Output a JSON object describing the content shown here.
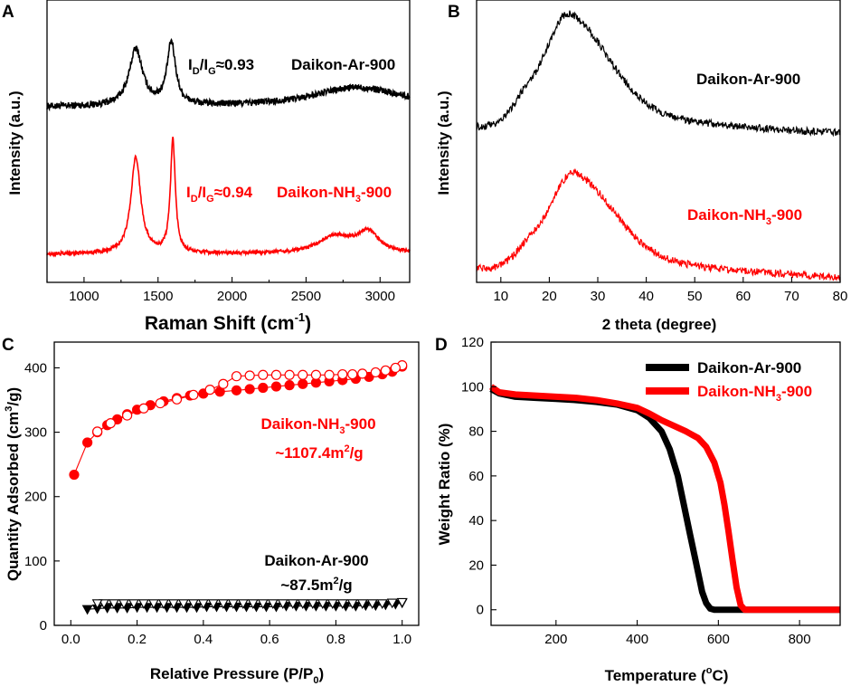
{
  "colors": {
    "black_series": "#000000",
    "red_series": "#ff0000"
  },
  "chart_data": [
    {
      "panel": "A",
      "type": "line",
      "xlabel": "Raman Shift (cm",
      "xlabel_sup": "-1",
      "xlabel_end": ")",
      "ylabel": "Intensity (a.u.)",
      "xlim": [
        750,
        3200
      ],
      "ylim": [
        0,
        1
      ],
      "xticks": [
        1000,
        1500,
        2000,
        2500,
        3000
      ],
      "series": [
        {
          "name": "Daikon-Ar-900",
          "color": "#000000",
          "offset": 0.62,
          "noise": 0.012,
          "peaks": [
            {
              "x": 1350,
              "h": 0.2,
              "w": 55
            },
            {
              "x": 1590,
              "h": 0.22,
              "w": 35
            },
            {
              "x": 2850,
              "h": 0.07,
              "w": 380
            }
          ]
        },
        {
          "name": "Daikon-NH3-900",
          "color": "#ff0000",
          "offset": 0.1,
          "noise": 0.006,
          "peaks": [
            {
              "x": 1350,
              "h": 0.34,
              "w": 40
            },
            {
              "x": 1600,
              "h": 0.4,
              "w": 20
            },
            {
              "x": 2700,
              "h": 0.06,
              "w": 140
            },
            {
              "x": 2920,
              "h": 0.07,
              "w": 90
            }
          ]
        }
      ],
      "annotations": [
        {
          "id": "ratio_ar",
          "t1": "I",
          "s1": "D",
          "t2": "/I",
          "s2": "G",
          "t3": "≈0.93",
          "color": "#000000"
        },
        {
          "id": "label_ar",
          "text": "Daikon-Ar-900",
          "color": "#000000"
        },
        {
          "id": "ratio_nh3",
          "t1": "I",
          "s1": "D",
          "t2": "/I",
          "s2": "G",
          "t3": "≈0.94",
          "color": "#ff0000"
        },
        {
          "id": "label_nh3",
          "text": "Daikon-NH",
          "sub": "3",
          "tail": "-900",
          "color": "#ff0000"
        }
      ]
    },
    {
      "panel": "B",
      "type": "line",
      "xlabel": "2 theta (degree)",
      "ylabel": "Intensity (a.u.)",
      "xlim": [
        5,
        80
      ],
      "ylim": [
        0,
        1
      ],
      "xticks": [
        10,
        20,
        30,
        40,
        50,
        60,
        70,
        80
      ],
      "series": [
        {
          "name": "Daikon-Ar-900",
          "color": "#000000",
          "peak_x": 24,
          "peak_y": 0.96,
          "base_start": 0.55,
          "base_end": 0.52,
          "tail_height": 0.12,
          "width": 6,
          "noise": 0.012
        },
        {
          "name": "Daikon-NH3-900",
          "color": "#ff0000",
          "peak_x": 25,
          "peak_y": 0.4,
          "base_start": 0.05,
          "base_end": 0.01,
          "tail_height": 0.1,
          "width": 6,
          "noise": 0.012
        }
      ],
      "annotations": [
        {
          "id": "label_ar",
          "text": "Daikon-Ar-900",
          "color": "#000000"
        },
        {
          "id": "label_nh3",
          "text": "Daikon-NH",
          "sub": "3",
          "tail": "-900",
          "color": "#ff0000"
        }
      ]
    },
    {
      "panel": "C",
      "type": "scatter",
      "xlabel": "Relative Pressure (P/P",
      "xlabel_sub": "0",
      "xlabel_end": ")",
      "ylabel": "Quantity Adsorbed (cm",
      "ylabel_sup": "3",
      "ylabel_end": "/g)",
      "xlim": [
        -0.05,
        1.05
      ],
      "ylim": [
        0,
        440
      ],
      "xticks": [
        0.0,
        0.2,
        0.4,
        0.6,
        0.8,
        1.0
      ],
      "yticks": [
        0,
        100,
        200,
        300,
        400
      ],
      "series": [
        {
          "name": "Daikon-NH3-900 adsorption",
          "color": "#ff0000",
          "marker": "circle-filled",
          "x": [
            0.01,
            0.05,
            0.08,
            0.11,
            0.14,
            0.17,
            0.2,
            0.24,
            0.28,
            0.32,
            0.36,
            0.4,
            0.45,
            0.5,
            0.54,
            0.58,
            0.62,
            0.66,
            0.7,
            0.74,
            0.78,
            0.82,
            0.86,
            0.9,
            0.94,
            0.97,
            1.0
          ],
          "y": [
            234,
            284,
            300,
            311,
            320,
            328,
            335,
            342,
            348,
            353,
            357,
            360,
            363,
            365,
            367,
            369,
            371,
            373,
            375,
            377,
            379,
            381,
            383,
            386,
            390,
            394,
            402
          ]
        },
        {
          "name": "Daikon-NH3-900 desorption",
          "color": "#ff0000",
          "marker": "circle-open",
          "x": [
            1.0,
            0.98,
            0.95,
            0.92,
            0.88,
            0.85,
            0.82,
            0.78,
            0.74,
            0.7,
            0.66,
            0.62,
            0.58,
            0.54,
            0.5,
            0.46,
            0.42,
            0.37,
            0.32,
            0.27,
            0.22,
            0.17,
            0.12,
            0.08
          ],
          "y": [
            404,
            400,
            396,
            393,
            391,
            390,
            390,
            389,
            389,
            389,
            389,
            389,
            389,
            388,
            387,
            375,
            366,
            358,
            351,
            345,
            337,
            326,
            314,
            301
          ]
        },
        {
          "name": "Daikon-Ar-900 adsorption",
          "color": "#000000",
          "marker": "triangle-filled",
          "x": [
            0.05,
            0.08,
            0.11,
            0.14,
            0.17,
            0.2,
            0.23,
            0.26,
            0.29,
            0.32,
            0.35,
            0.38,
            0.41,
            0.44,
            0.47,
            0.5,
            0.53,
            0.56,
            0.59,
            0.62,
            0.65,
            0.68,
            0.71,
            0.74,
            0.77,
            0.8,
            0.83,
            0.86,
            0.89,
            0.92,
            0.95,
            0.98,
            1.0
          ],
          "y": [
            25,
            26,
            27,
            27,
            27,
            28,
            28,
            28,
            28,
            28,
            28,
            28,
            29,
            29,
            29,
            29,
            29,
            29,
            29,
            29,
            30,
            30,
            30,
            30,
            30,
            30,
            30,
            30,
            31,
            31,
            32,
            33,
            35
          ]
        },
        {
          "name": "Daikon-Ar-900 desorption",
          "color": "#000000",
          "marker": "triangle-open",
          "x": [
            1.0,
            0.97,
            0.94,
            0.91,
            0.88,
            0.85,
            0.82,
            0.79,
            0.76,
            0.73,
            0.7,
            0.67,
            0.64,
            0.61,
            0.58,
            0.55,
            0.52,
            0.49,
            0.46,
            0.43,
            0.4,
            0.37,
            0.34,
            0.31,
            0.28,
            0.25,
            0.22,
            0.19,
            0.16,
            0.13,
            0.1,
            0.08
          ],
          "y": [
            36,
            35,
            34,
            34,
            34,
            34,
            34,
            34,
            34,
            34,
            34,
            34,
            34,
            34,
            34,
            34,
            34,
            34,
            34,
            34,
            34,
            34,
            34,
            34,
            34,
            34,
            34,
            34,
            34,
            34,
            34,
            34
          ]
        }
      ],
      "annotations": [
        {
          "id": "label_nh3",
          "text": "Daikon-NH",
          "sub": "3",
          "tail": "-900",
          "color": "#ff0000"
        },
        {
          "id": "area_nh3",
          "text": "~1107.4m",
          "sup": "2",
          "tail": "/g",
          "color": "#ff0000"
        },
        {
          "id": "label_ar",
          "text": "Daikon-Ar-900",
          "color": "#000000"
        },
        {
          "id": "area_ar",
          "text": "~87.5m",
          "sup": "2",
          "tail": "/g",
          "color": "#000000"
        }
      ]
    },
    {
      "panel": "D",
      "type": "line",
      "xlabel": "Temperature (",
      "xlabel_sup": "o",
      "xlabel_end": "C)",
      "ylabel": "Weight Ratio (%)",
      "xlim": [
        40,
        900
      ],
      "ylim": [
        -7,
        120
      ],
      "xticks": [
        200,
        400,
        600,
        800
      ],
      "yticks": [
        0,
        20,
        40,
        60,
        80,
        100,
        120
      ],
      "series": [
        {
          "name": "Daikon-Ar-900",
          "color": "#000000",
          "x": [
            40,
            60,
            100,
            150,
            200,
            250,
            300,
            350,
            400,
            430,
            460,
            480,
            500,
            515,
            530,
            545,
            560,
            570,
            580,
            590,
            600,
            650,
            700,
            800,
            900
          ],
          "y": [
            99,
            97,
            95.5,
            95,
            94.5,
            94,
            93.2,
            92,
            89.5,
            86,
            80,
            72,
            60,
            47,
            34,
            21,
            8,
            3,
            0.5,
            0,
            0,
            0,
            0,
            0,
            0
          ]
        },
        {
          "name": "Daikon-NH3-900",
          "color": "#ff0000",
          "x": [
            40,
            60,
            100,
            150,
            200,
            250,
            300,
            350,
            400,
            430,
            460,
            490,
            520,
            550,
            570,
            590,
            605,
            615,
            625,
            635,
            645,
            655,
            665,
            700,
            800,
            900
          ],
          "y": [
            100,
            97.5,
            96.5,
            96,
            95.5,
            95,
            94,
            92.5,
            90.5,
            88,
            85,
            82.5,
            80,
            77,
            73,
            66,
            57,
            47,
            35,
            22,
            10,
            2,
            0,
            0,
            0,
            0
          ]
        }
      ],
      "legend": {
        "position": "top-right",
        "entries": [
          {
            "text": "Daikon-Ar-900",
            "color": "#000000"
          },
          {
            "text": "Daikon-NH",
            "sub": "3",
            "tail": "-900",
            "color": "#ff0000"
          }
        ]
      }
    }
  ]
}
